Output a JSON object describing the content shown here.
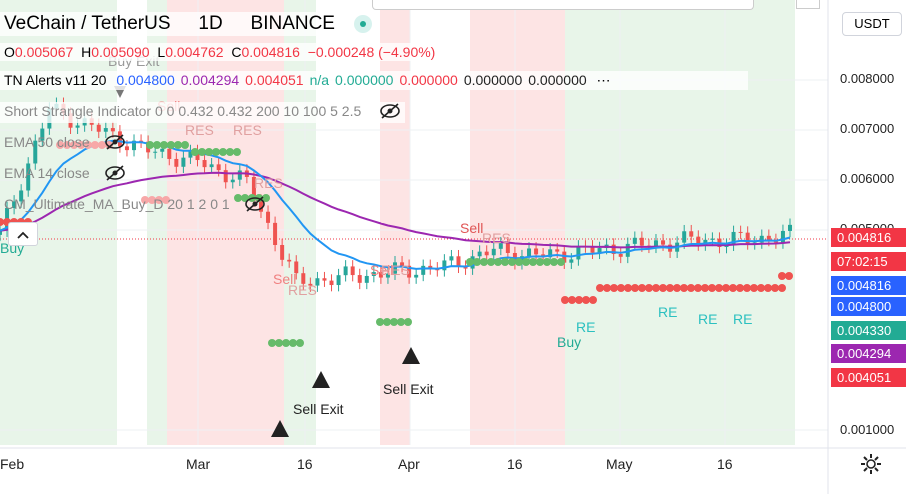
{
  "header": {
    "symbol": "VeChain / TetherUS",
    "interval": "1D",
    "exchange": "BINANCE",
    "currency_button": "USDT"
  },
  "ohlc": {
    "o_label": "O",
    "o": "0.005067",
    "h_label": "H",
    "h": "0.005090",
    "l_label": "L",
    "l": "0.004762",
    "c_label": "C",
    "c": "0.004816",
    "change": "−0.000248 (−4.90%)"
  },
  "indicators": [
    {
      "name": "TN Alerts v11 20",
      "values": [
        "0.004800",
        "0.004294",
        "0.004051",
        "n/a",
        "0.000000",
        "0.000000",
        "0.000000",
        "0.000000"
      ],
      "value_colors": [
        "#2962ff",
        "#9c27b0",
        "#f23645",
        "#22ab94",
        "#22ab94",
        "#f23645",
        "#222222",
        "#222222"
      ],
      "more": "⋯"
    },
    {
      "name": "Short Strangle Indicator 0 0 0.432 0.432 200 10 100 5 2.5"
    },
    {
      "name": "EMA 50 close"
    },
    {
      "name": "EMA 14 close"
    },
    {
      "name": "CM_Ultimate_MA_Buy_D 20 1 2 0 1"
    }
  ],
  "price_axis": {
    "ticks": [
      "0.008000",
      "0.007000",
      "0.006000",
      "0.005000",
      "0.001000"
    ],
    "tags": [
      {
        "text": "0.004816",
        "color": "#f23645"
      },
      {
        "text": "07:02:15",
        "color": "#f23645"
      },
      {
        "text": "0.004816",
        "color": "#2962ff"
      },
      {
        "text": "0.004800",
        "color": "#2962ff"
      },
      {
        "text": "0.004330",
        "color": "#22ab94"
      },
      {
        "text": "0.004294",
        "color": "#9c27b0"
      },
      {
        "text": "0.004051",
        "color": "#f23645"
      }
    ]
  },
  "time_axis": {
    "labels": [
      "Feb",
      "Mar",
      "16",
      "Apr",
      "16",
      "May",
      "16"
    ]
  },
  "annotations": {
    "buy_exit": "Buy Exit",
    "sell": "Sell",
    "res": "RES",
    "re": "RE",
    "buy": "Buy",
    "sell_exit": "Sell Exit"
  },
  "icons": [
    "eye-hidden-icon",
    "gear-icon",
    "plus-icon",
    "chevron-up-icon",
    "drag-dot-icon"
  ],
  "chart_data": {
    "type": "candlestick",
    "ylim": [
      0.0008,
      0.0087
    ],
    "x": [
      "Feb 01",
      "Feb 08",
      "Feb 15",
      "Feb 22",
      "Mar 01",
      "Mar 08",
      "Mar 15",
      "Mar 22",
      "Mar 29",
      "Apr 05",
      "Apr 12",
      "Apr 19",
      "Apr 26",
      "May 03",
      "May 10",
      "May 17",
      "May 24"
    ],
    "close_approx": [
      0.0048,
      0.0072,
      0.0068,
      0.0064,
      0.0062,
      0.0058,
      0.0039,
      0.004,
      0.0041,
      0.0042,
      0.0045,
      0.0044,
      0.0045,
      0.0046,
      0.0047,
      0.0047,
      0.0048
    ],
    "series": [
      {
        "name": "EMA 50 close",
        "color": "#9c27b0"
      },
      {
        "name": "EMA 14 close",
        "color": "#2196f3"
      }
    ]
  }
}
